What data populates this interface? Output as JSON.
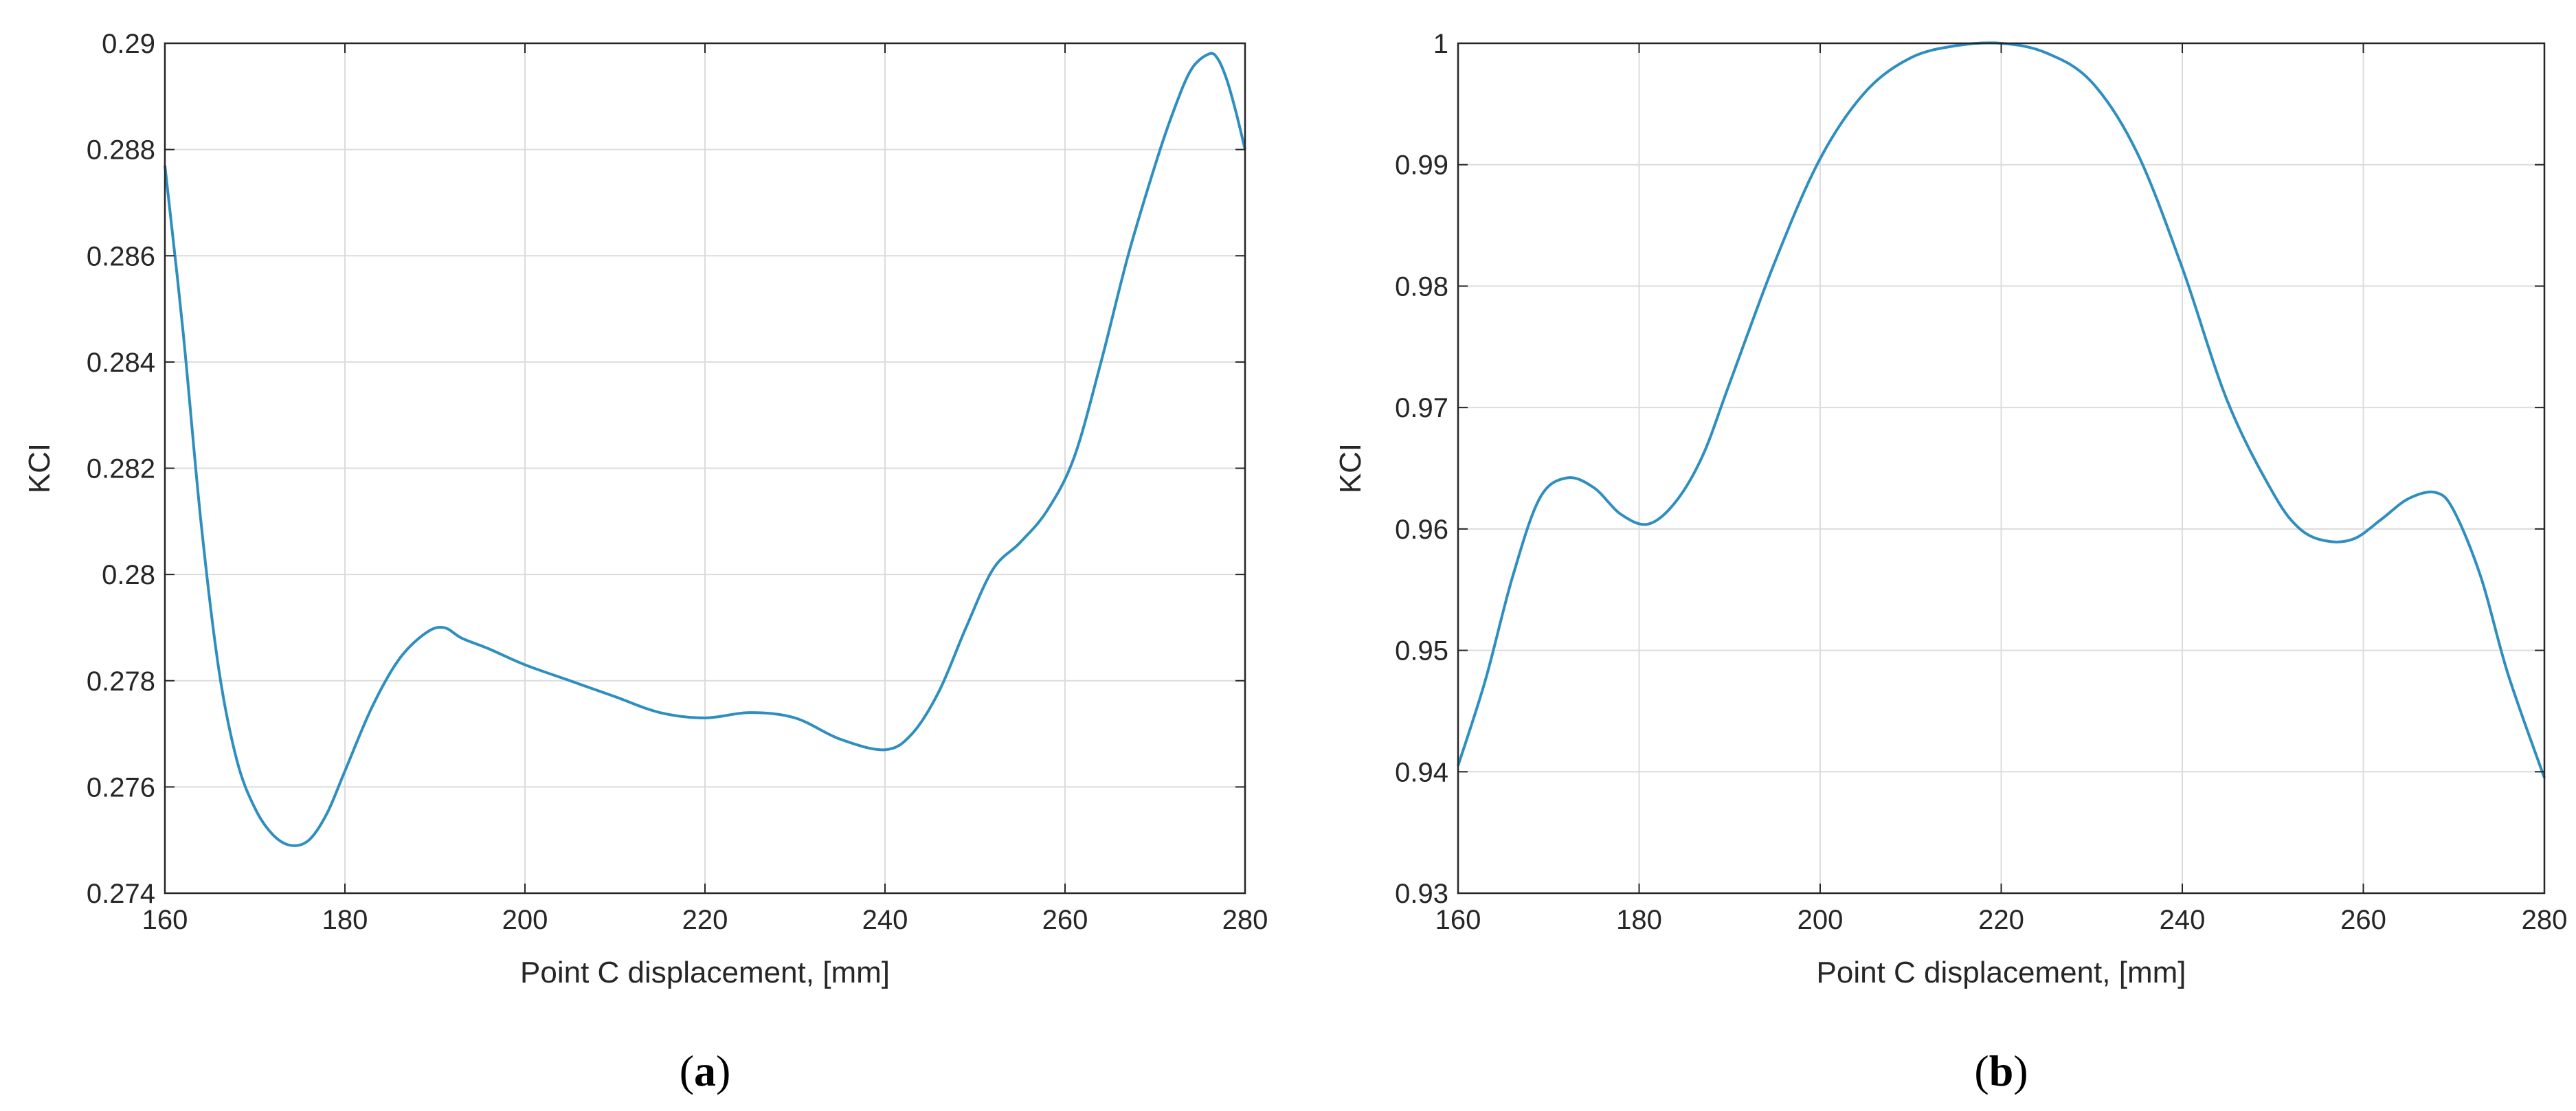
{
  "chart_data": [
    {
      "type": "line",
      "panel_label": "(a)",
      "panel_letter": "a",
      "xlabel": "Point C displacement, [mm]",
      "ylabel": "KCI",
      "xlim": [
        160,
        280
      ],
      "ylim": [
        0.274,
        0.29
      ],
      "xticks": [
        160,
        180,
        200,
        220,
        240,
        260,
        280
      ],
      "xtick_labels": [
        "160",
        "180",
        "200",
        "220",
        "240",
        "260",
        "280"
      ],
      "yticks": [
        0.274,
        0.276,
        0.278,
        0.28,
        0.282,
        0.284,
        0.286,
        0.288,
        0.29
      ],
      "ytick_labels": [
        "0.274",
        "0.276",
        "0.278",
        "0.28",
        "0.282",
        "0.284",
        "0.286",
        "0.288",
        "0.29"
      ],
      "grid": true,
      "line_color": "#2e8fbf",
      "series": [
        {
          "x": [
            160,
            162,
            164,
            166,
            168,
            170,
            172,
            174,
            176,
            178,
            180,
            183,
            186,
            189,
            191,
            193,
            196,
            200,
            205,
            210,
            215,
            220,
            225,
            230,
            235,
            240,
            243,
            246,
            249,
            252,
            255,
            258,
            261,
            264,
            267,
            270,
            272,
            274,
            276,
            277,
            278,
            279,
            280
          ],
          "y": [
            0.2877,
            0.2846,
            0.281,
            0.2782,
            0.2765,
            0.2756,
            0.2751,
            0.2749,
            0.275,
            0.2755,
            0.2763,
            0.2775,
            0.2784,
            0.2789,
            0.279,
            0.2788,
            0.2786,
            0.2783,
            0.278,
            0.2777,
            0.2774,
            0.2773,
            0.2774,
            0.2773,
            0.2769,
            0.2767,
            0.277,
            0.2778,
            0.279,
            0.2801,
            0.2806,
            0.2812,
            0.2822,
            0.284,
            0.286,
            0.2877,
            0.2887,
            0.2895,
            0.2898,
            0.2897,
            0.2893,
            0.2887,
            0.288
          ]
        }
      ]
    },
    {
      "type": "line",
      "panel_label": "(b)",
      "panel_letter": "b",
      "xlabel": "Point C displacement, [mm]",
      "ylabel": "KCI",
      "xlim": [
        160,
        280
      ],
      "ylim": [
        0.93,
        1
      ],
      "xticks": [
        160,
        180,
        200,
        220,
        240,
        260,
        280
      ],
      "xtick_labels": [
        "160",
        "180",
        "200",
        "220",
        "240",
        "260",
        "280"
      ],
      "yticks": [
        0.93,
        0.94,
        0.95,
        0.96,
        0.97,
        0.98,
        0.99,
        1
      ],
      "ytick_labels": [
        "0.93",
        "0.94",
        "0.95",
        "0.96",
        "0.97",
        "0.98",
        "0.99",
        "1"
      ],
      "grid": true,
      "line_color": "#2e8fbf",
      "series": [
        {
          "x": [
            160,
            163,
            166,
            169,
            172,
            175,
            178,
            181,
            184,
            187,
            190,
            195,
            200,
            205,
            210,
            215,
            220,
            225,
            230,
            235,
            240,
            245,
            250,
            253,
            256,
            259,
            262,
            265,
            268,
            270,
            273,
            276,
            280
          ],
          "y": [
            0.9405,
            0.9475,
            0.956,
            0.9625,
            0.9642,
            0.9634,
            0.9612,
            0.9604,
            0.9622,
            0.966,
            0.972,
            0.982,
            0.9905,
            0.996,
            0.9988,
            0.9998,
            1.0,
            0.9992,
            0.9968,
            0.991,
            0.9815,
            0.9705,
            0.963,
            0.96,
            0.959,
            0.9592,
            0.9608,
            0.9625,
            0.963,
            0.9615,
            0.956,
            0.948,
            0.9395
          ]
        }
      ]
    }
  ]
}
